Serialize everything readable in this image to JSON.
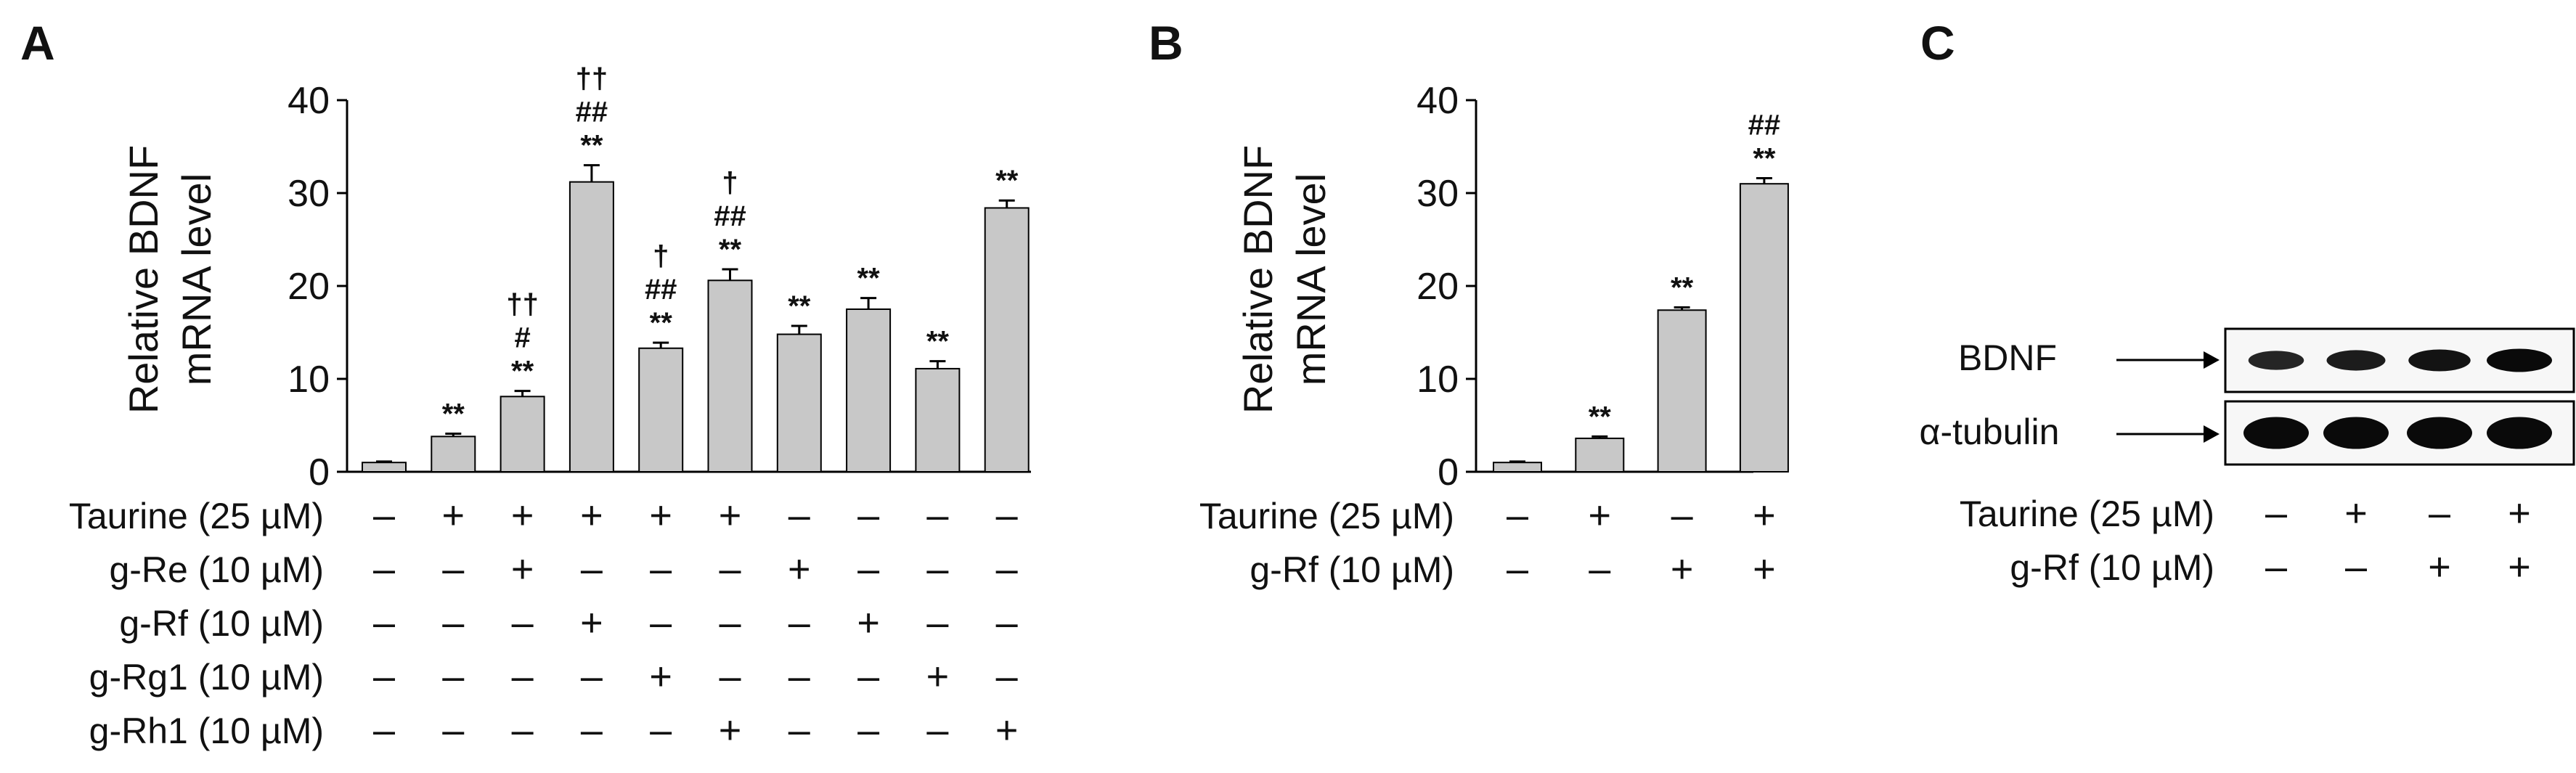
{
  "panels": {
    "A": {
      "letter": "A",
      "chart_data": {
        "type": "bar",
        "ylabel_lines": [
          "Relative BDNF",
          "mRNA level"
        ],
        "ylim": [
          0,
          40
        ],
        "yticks": [
          0,
          10,
          20,
          30,
          40
        ],
        "grid": false,
        "bar_color": "#c8c8c8",
        "bars": [
          {
            "value": 1.0,
            "error": 0.1,
            "sig": []
          },
          {
            "value": 3.8,
            "error": 0.3,
            "sig": [
              "**"
            ]
          },
          {
            "value": 8.1,
            "error": 0.6,
            "sig": [
              "††",
              "#",
              "**"
            ]
          },
          {
            "value": 31.2,
            "error": 1.8,
            "sig": [
              "††",
              "##",
              "**"
            ]
          },
          {
            "value": 13.3,
            "error": 0.6,
            "sig": [
              "†",
              "##",
              "**"
            ]
          },
          {
            "value": 20.6,
            "error": 1.2,
            "sig": [
              "†",
              "##",
              "**"
            ]
          },
          {
            "value": 14.8,
            "error": 0.9,
            "sig": [
              "**"
            ]
          },
          {
            "value": 17.5,
            "error": 1.2,
            "sig": [
              "**"
            ]
          },
          {
            "value": 11.1,
            "error": 0.8,
            "sig": [
              "**"
            ]
          },
          {
            "value": 28.4,
            "error": 0.8,
            "sig": [
              "**"
            ]
          }
        ],
        "treatments": [
          {
            "label": "Taurine (25 µM)",
            "signs": [
              "–",
              "+",
              "+",
              "+",
              "+",
              "+",
              "–",
              "–",
              "–",
              "–"
            ]
          },
          {
            "label": "g-Re (10 µM)",
            "signs": [
              "–",
              "–",
              "+",
              "–",
              "–",
              "–",
              "+",
              "–",
              "–",
              "–"
            ]
          },
          {
            "label": "g-Rf (10 µM)",
            "signs": [
              "–",
              "–",
              "–",
              "+",
              "–",
              "–",
              "–",
              "+",
              "–",
              "–"
            ]
          },
          {
            "label": "g-Rg1 (10 µM)",
            "signs": [
              "–",
              "–",
              "–",
              "–",
              "+",
              "–",
              "–",
              "–",
              "+",
              "–"
            ]
          },
          {
            "label": "g-Rh1 (10 µM)",
            "signs": [
              "–",
              "–",
              "–",
              "–",
              "–",
              "+",
              "–",
              "–",
              "–",
              "+"
            ]
          }
        ]
      }
    },
    "B": {
      "letter": "B",
      "chart_data": {
        "type": "bar",
        "ylabel_lines": [
          "Relative BDNF",
          "mRNA level"
        ],
        "ylim": [
          0,
          40
        ],
        "yticks": [
          0,
          10,
          20,
          30,
          40
        ],
        "grid": false,
        "bar_color": "#c8c8c8",
        "bars": [
          {
            "value": 1.0,
            "error": 0.1,
            "sig": []
          },
          {
            "value": 3.6,
            "error": 0.2,
            "sig": [
              "**"
            ]
          },
          {
            "value": 17.4,
            "error": 0.3,
            "sig": [
              "**"
            ]
          },
          {
            "value": 31.0,
            "error": 0.6,
            "sig": [
              "##",
              "**"
            ]
          }
        ],
        "treatments": [
          {
            "label": "Taurine (25 µM)",
            "signs": [
              "–",
              "+",
              "–",
              "+"
            ]
          },
          {
            "label": "g-Rf (10 µM)",
            "signs": [
              "–",
              "–",
              "+",
              "+"
            ]
          }
        ]
      }
    },
    "C": {
      "letter": "C",
      "blot_rows": [
        "BDNF",
        "α-tubulin"
      ],
      "treatments": [
        {
          "label": "Taurine (25 µM)",
          "signs": [
            "–",
            "+",
            "–",
            "+"
          ]
        },
        {
          "label": "g-Rf (10 µM)",
          "signs": [
            "–",
            "–",
            "+",
            "+"
          ]
        }
      ],
      "band_intensity": {
        "BDNF": [
          0.55,
          0.7,
          0.85,
          1.0
        ],
        "α-tubulin": [
          1.0,
          1.0,
          1.0,
          1.0
        ]
      }
    }
  }
}
